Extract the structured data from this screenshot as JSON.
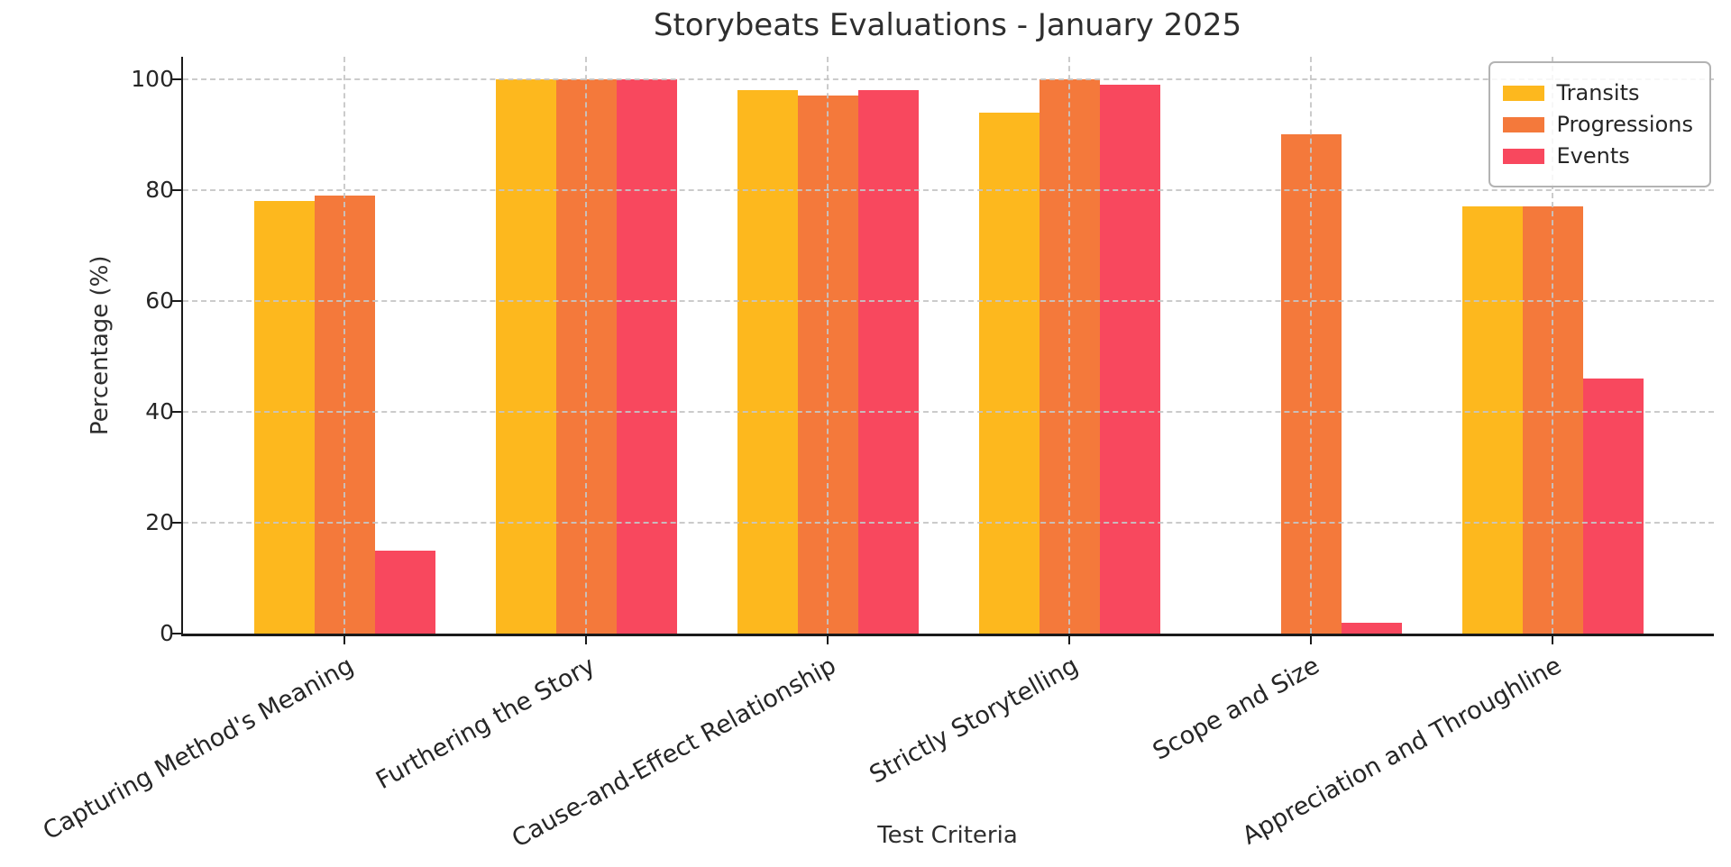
{
  "chart_data": {
    "type": "bar",
    "title": "Storybeats Evaluations - January 2025",
    "xlabel": "Test Criteria",
    "ylabel": "Percentage (%)",
    "ylim": [
      0,
      104
    ],
    "yticks": [
      0,
      20,
      40,
      60,
      80,
      100
    ],
    "grid": true,
    "grid_style": "dashed",
    "legend_position": "upper right",
    "categories": [
      "Capturing Method's Meaning",
      "Furthering the Story",
      "Cause-and-Effect Relationship",
      "Strictly Storytelling",
      "Scope and Size",
      "Appreciation and Throughline"
    ],
    "series": [
      {
        "name": "Transits",
        "color": "#FDB81E",
        "values": [
          78,
          100,
          98,
          94,
          0,
          77
        ]
      },
      {
        "name": "Progressions",
        "color": "#F4793B",
        "values": [
          79,
          100,
          97,
          100,
          90,
          77
        ]
      },
      {
        "name": "Events",
        "color": "#F8485E",
        "values": [
          15,
          100,
          98,
          99,
          2,
          46
        ]
      }
    ]
  },
  "colors": {
    "background": "#ffffff",
    "text": "#2e2e2e",
    "tick_text": "#262626",
    "spine": "#1a1a1a",
    "gridline": "#c6c6c6",
    "legend_border": "#b3b3b3"
  }
}
